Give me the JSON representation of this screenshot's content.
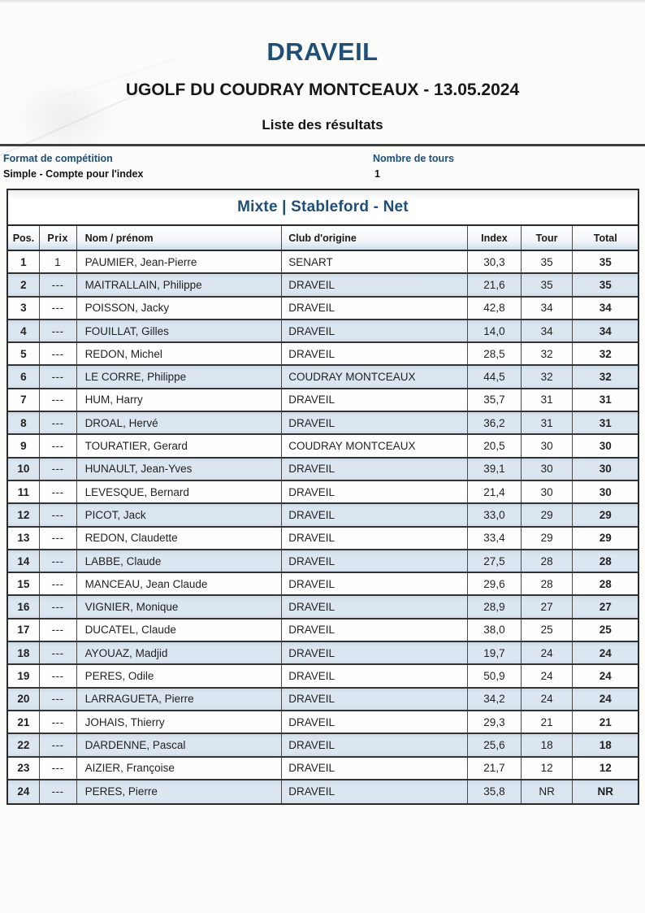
{
  "page": {
    "title": "DRAVEIL",
    "subtitle": "UGOLF DU COUDRAY MONTCEAUX - 13.05.2024",
    "heading": "Liste des résultats"
  },
  "info": {
    "format_label": "Format de compétition",
    "format_value": "Simple - Compte pour l'index",
    "rounds_label": "Nombre de tours",
    "rounds_value": "1"
  },
  "table": {
    "banner": "Mixte | Stableford - Net",
    "columns": [
      "Pos.",
      "Prix",
      "Nom / prénom",
      "Club d'origine",
      "Index",
      "Tour",
      "Total"
    ],
    "rows": [
      [
        "1",
        "1",
        "PAUMIER, Jean-Pierre",
        "SENART",
        "30,3",
        "35",
        "35"
      ],
      [
        "2",
        "---",
        "MAITRALLAIN, Philippe",
        "DRAVEIL",
        "21,6",
        "35",
        "35"
      ],
      [
        "3",
        "---",
        "POISSON, Jacky",
        "DRAVEIL",
        "42,8",
        "34",
        "34"
      ],
      [
        "4",
        "---",
        "FOUILLAT, Gilles",
        "DRAVEIL",
        "14,0",
        "34",
        "34"
      ],
      [
        "5",
        "---",
        "REDON, Michel",
        "DRAVEIL",
        "28,5",
        "32",
        "32"
      ],
      [
        "6",
        "---",
        "LE CORRE, Philippe",
        "COUDRAY MONTCEAUX",
        "44,5",
        "32",
        "32"
      ],
      [
        "7",
        "---",
        "HUM, Harry",
        "DRAVEIL",
        "35,7",
        "31",
        "31"
      ],
      [
        "8",
        "---",
        "DROAL, Hervé",
        "DRAVEIL",
        "36,2",
        "31",
        "31"
      ],
      [
        "9",
        "---",
        "TOURATIER, Gerard",
        "COUDRAY MONTCEAUX",
        "20,5",
        "30",
        "30"
      ],
      [
        "10",
        "---",
        "HUNAULT, Jean-Yves",
        "DRAVEIL",
        "39,1",
        "30",
        "30"
      ],
      [
        "11",
        "---",
        "LEVESQUE, Bernard",
        "DRAVEIL",
        "21,4",
        "30",
        "30"
      ],
      [
        "12",
        "---",
        "PICOT, Jack",
        "DRAVEIL",
        "33,0",
        "29",
        "29"
      ],
      [
        "13",
        "---",
        "REDON, Claudette",
        "DRAVEIL",
        "33,4",
        "29",
        "29"
      ],
      [
        "14",
        "---",
        "LABBE, Claude",
        "DRAVEIL",
        "27,5",
        "28",
        "28"
      ],
      [
        "15",
        "---",
        "MANCEAU, Jean Claude",
        "DRAVEIL",
        "29,6",
        "28",
        "28"
      ],
      [
        "16",
        "---",
        "VIGNIER, Monique",
        "DRAVEIL",
        "28,9",
        "27",
        "27"
      ],
      [
        "17",
        "---",
        "DUCATEL, Claude",
        "DRAVEIL",
        "38,0",
        "25",
        "25"
      ],
      [
        "18",
        "---",
        "AYOUAZ, Madjid",
        "DRAVEIL",
        "19,7",
        "24",
        "24"
      ],
      [
        "19",
        "---",
        "PERES, Odile",
        "DRAVEIL",
        "50,9",
        "24",
        "24"
      ],
      [
        "20",
        "---",
        "LARRAGUETA, Pierre",
        "DRAVEIL",
        "34,2",
        "24",
        "24"
      ],
      [
        "21",
        "---",
        "JOHAIS, Thierry",
        "DRAVEIL",
        "29,3",
        "21",
        "21"
      ],
      [
        "22",
        "---",
        "DARDENNE, Pascal",
        "DRAVEIL",
        "25,6",
        "18",
        "18"
      ],
      [
        "23",
        "---",
        "AIZIER, Françoise",
        "DRAVEIL",
        "21,7",
        "12",
        "12"
      ],
      [
        "24",
        "---",
        "PERES, Pierre",
        "DRAVEIL",
        "35,8",
        "NR",
        "NR"
      ]
    ]
  },
  "colors": {
    "accent": "#1f4e79",
    "row_alt": "#dce6f0",
    "border_dark": "#2a2a2a"
  }
}
